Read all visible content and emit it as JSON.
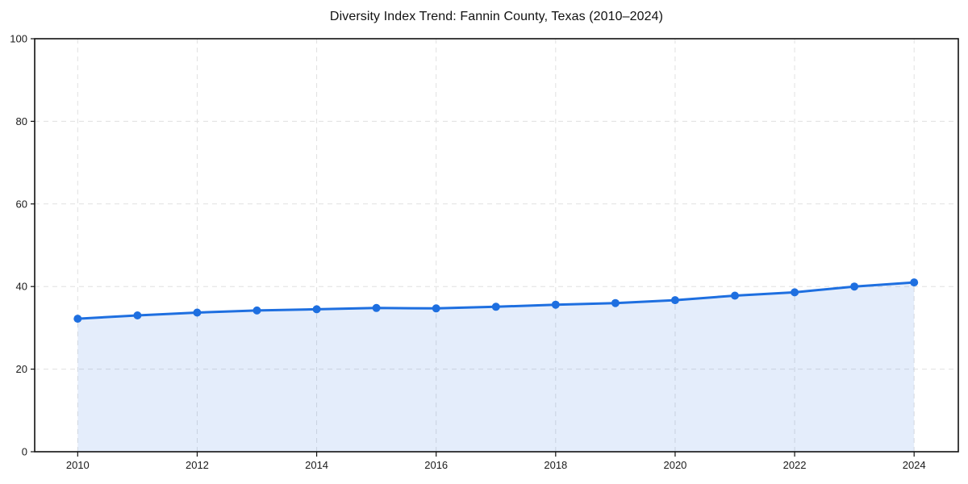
{
  "chart_data": {
    "type": "line",
    "title": "Diversity Index Trend: Fannin County, Texas (2010–2024)",
    "series_name": "Diversity Index",
    "x": [
      2010,
      2011,
      2012,
      2013,
      2014,
      2015,
      2016,
      2017,
      2018,
      2019,
      2020,
      2021,
      2022,
      2023,
      2024
    ],
    "values": [
      32.2,
      33.0,
      33.7,
      34.2,
      34.5,
      34.8,
      34.7,
      35.1,
      35.6,
      36.0,
      36.7,
      37.8,
      38.6,
      40.0,
      41.0
    ],
    "xlabel": "",
    "ylabel": "",
    "xlim": [
      2009.28,
      2024.74
    ],
    "ylim": [
      0,
      100
    ],
    "xticks": [
      2010,
      2012,
      2014,
      2016,
      2018,
      2020,
      2022,
      2024
    ],
    "yticks": [
      0,
      20,
      40,
      60,
      80,
      100
    ],
    "grid": true,
    "grid_style": "dashed",
    "legend": "none",
    "area_fill": true,
    "marker": "circle",
    "colors": {
      "line": "#1e6fe0",
      "marker": "#1e6fe0",
      "fill": "#1e6fe0",
      "fill_opacity": 0.12,
      "grid": "#e0e0e0",
      "axis": "#111111",
      "text": "#1a1a1a",
      "background": "#ffffff"
    }
  }
}
